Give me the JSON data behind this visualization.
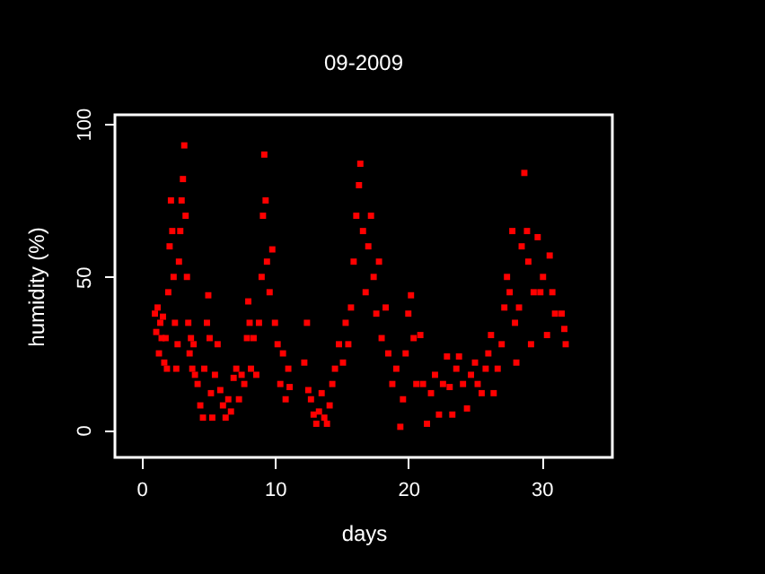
{
  "chart_data": {
    "type": "scatter",
    "title": "09-2009",
    "xlabel": "days",
    "ylabel": "humidity (%)",
    "color": "#ff0000",
    "marker": "square",
    "grid": false,
    "xlim": [
      -2,
      35.3
    ],
    "ylim": [
      -9,
      103
    ],
    "xticks": [
      0,
      10,
      20,
      30
    ],
    "yticks": [
      0,
      50,
      100
    ],
    "x": [
      1.0,
      1.1,
      1.2,
      1.3,
      1.4,
      1.5,
      1.6,
      1.7,
      1.8,
      1.9,
      2.0,
      2.1,
      2.2,
      2.3,
      2.4,
      2.5,
      2.6,
      2.7,
      2.8,
      2.9,
      3.0,
      3.1,
      3.2,
      3.3,
      3.4,
      3.5,
      3.6,
      3.7,
      3.8,
      3.9,
      4.0,
      4.2,
      4.4,
      4.6,
      4.7,
      4.9,
      5.0,
      5.1,
      5.2,
      5.3,
      5.5,
      5.7,
      5.9,
      6.1,
      6.3,
      6.5,
      6.7,
      6.9,
      7.1,
      7.3,
      7.5,
      7.7,
      7.9,
      8.0,
      8.1,
      8.2,
      8.4,
      8.6,
      8.8,
      9.0,
      9.1,
      9.2,
      9.3,
      9.4,
      9.6,
      9.8,
      10.0,
      10.2,
      10.4,
      10.6,
      10.8,
      11.0,
      11.1,
      12.2,
      12.4,
      12.5,
      12.7,
      12.9,
      13.1,
      13.3,
      13.5,
      13.7,
      13.9,
      14.1,
      14.3,
      14.5,
      14.8,
      15.1,
      15.3,
      15.5,
      15.7,
      15.9,
      16.1,
      16.3,
      16.4,
      16.6,
      16.8,
      17.0,
      17.2,
      17.4,
      17.6,
      17.8,
      18.0,
      18.3,
      18.5,
      18.8,
      19.1,
      19.4,
      19.6,
      19.8,
      20.0,
      20.2,
      20.4,
      20.6,
      20.9,
      21.1,
      21.4,
      21.7,
      22.0,
      22.3,
      22.6,
      22.9,
      23.1,
      23.3,
      23.6,
      23.8,
      24.1,
      24.4,
      24.7,
      25.0,
      25.2,
      25.5,
      25.8,
      26.0,
      26.2,
      26.4,
      26.7,
      27.0,
      27.2,
      27.4,
      27.6,
      27.8,
      28.0,
      28.1,
      28.3,
      28.5,
      28.7,
      28.9,
      29.0,
      29.2,
      29.4,
      29.7,
      29.9,
      30.1,
      30.4,
      30.6,
      30.8,
      31.0,
      31.5,
      31.7,
      31.8
    ],
    "values": [
      38,
      32,
      40,
      25,
      35,
      30,
      37,
      22,
      30,
      20,
      45,
      60,
      75,
      65,
      50,
      35,
      20,
      28,
      55,
      65,
      75,
      82,
      93,
      70,
      50,
      35,
      25,
      30,
      20,
      28,
      18,
      15,
      8,
      4,
      20,
      35,
      44,
      30,
      12,
      4,
      18,
      28,
      13,
      8,
      4,
      10,
      6,
      17,
      20,
      10,
      18,
      15,
      30,
      42,
      35,
      20,
      30,
      18,
      35,
      50,
      70,
      90,
      75,
      55,
      45,
      59,
      35,
      28,
      15,
      25,
      10,
      20,
      14,
      22,
      35,
      13,
      10,
      5,
      2,
      6,
      12,
      4,
      2,
      8,
      15,
      20,
      28,
      22,
      35,
      28,
      40,
      55,
      70,
      80,
      87,
      65,
      45,
      60,
      70,
      50,
      38,
      55,
      30,
      40,
      25,
      15,
      20,
      1,
      10,
      25,
      38,
      44,
      30,
      15,
      31,
      15,
      2,
      12,
      18,
      5,
      15,
      24,
      14,
      5,
      20,
      24,
      15,
      7,
      18,
      22,
      15,
      12,
      20,
      25,
      31,
      12,
      20,
      28,
      40,
      50,
      45,
      65,
      35,
      22,
      40,
      60,
      84,
      65,
      55,
      28,
      45,
      63,
      45,
      50,
      31,
      57,
      45,
      38,
      38,
      33,
      28
    ]
  }
}
